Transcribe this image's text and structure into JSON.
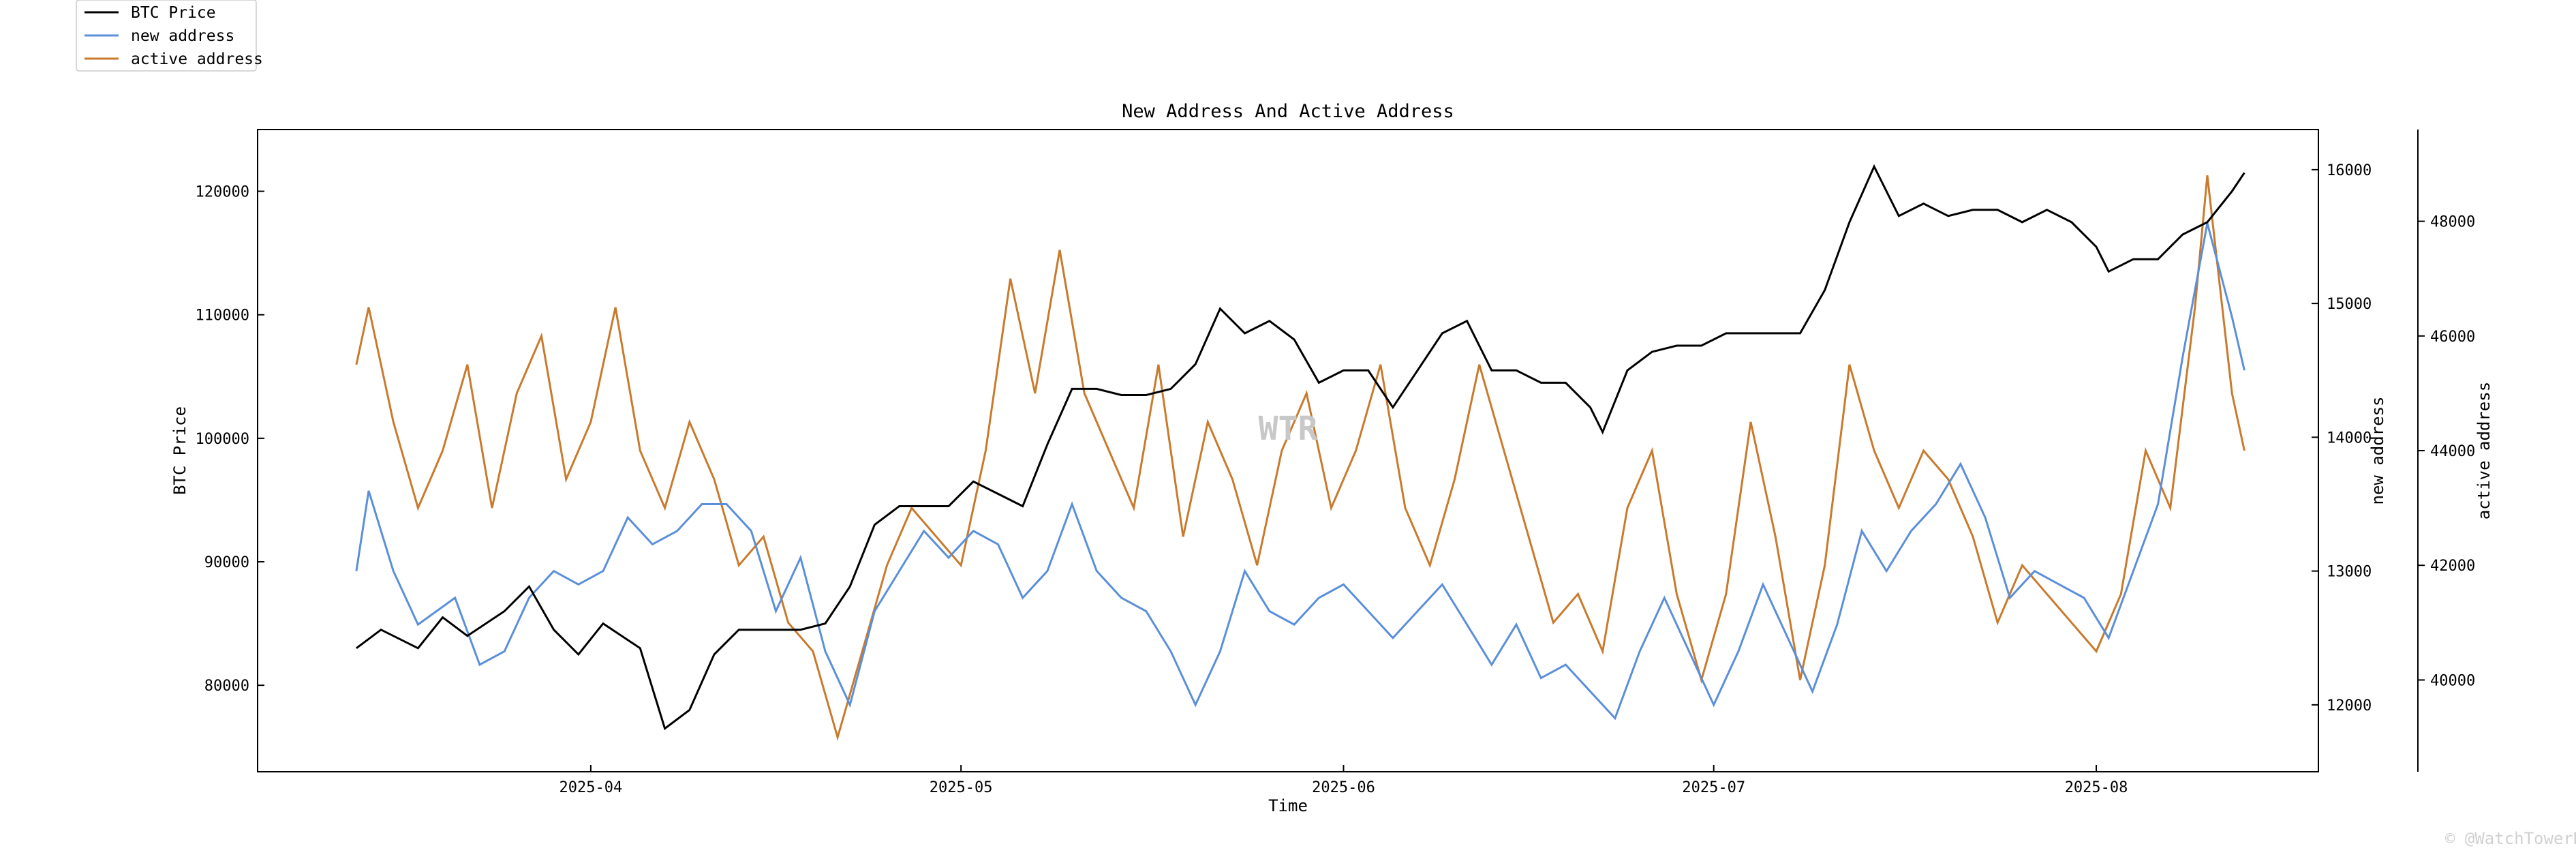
{
  "chart_data": {
    "type": "line",
    "title": "New Address And Active Address",
    "xlabel": "Time",
    "ylabel": "BTC Price",
    "y2label": "new address",
    "y3label": "active address",
    "xlim": [
      "2025-03-05",
      "2025-08-19"
    ],
    "x_ticks": [
      "2025-04",
      "2025-05",
      "2025-06",
      "2025-07",
      "2025-08"
    ],
    "ylim": [
      73000,
      125000
    ],
    "y_ticks": [
      80000,
      90000,
      100000,
      110000,
      120000
    ],
    "y2lim": [
      11500,
      16300
    ],
    "y2_ticks": [
      12000,
      13000,
      14000,
      15000,
      16000
    ],
    "y3lim": [
      38400,
      49600
    ],
    "y3_ticks": [
      40000,
      42000,
      44000,
      46000,
      48000
    ],
    "grid": false,
    "legend": "top-left, outside plot",
    "series": [
      {
        "name": "BTC Price",
        "axis": "left",
        "color": "#000000",
        "points": [
          [
            "2025-03-13",
            83000
          ],
          [
            "2025-03-15",
            84500
          ],
          [
            "2025-03-18",
            83000
          ],
          [
            "2025-03-20",
            85500
          ],
          [
            "2025-03-22",
            84000
          ],
          [
            "2025-03-25",
            86000
          ],
          [
            "2025-03-27",
            88000
          ],
          [
            "2025-03-29",
            84500
          ],
          [
            "2025-03-31",
            82500
          ],
          [
            "2025-04-02",
            85000
          ],
          [
            "2025-04-05",
            83000
          ],
          [
            "2025-04-07",
            76500
          ],
          [
            "2025-04-09",
            78000
          ],
          [
            "2025-04-11",
            82500
          ],
          [
            "2025-04-13",
            84500
          ],
          [
            "2025-04-15",
            84500
          ],
          [
            "2025-04-18",
            84500
          ],
          [
            "2025-04-20",
            85000
          ],
          [
            "2025-04-22",
            88000
          ],
          [
            "2025-04-24",
            93000
          ],
          [
            "2025-04-26",
            94500
          ],
          [
            "2025-04-28",
            94500
          ],
          [
            "2025-04-30",
            94500
          ],
          [
            "2025-05-02",
            96500
          ],
          [
            "2025-05-04",
            95500
          ],
          [
            "2025-05-06",
            94500
          ],
          [
            "2025-05-08",
            99500
          ],
          [
            "2025-05-10",
            104000
          ],
          [
            "2025-05-12",
            104000
          ],
          [
            "2025-05-14",
            103500
          ],
          [
            "2025-05-16",
            103500
          ],
          [
            "2025-05-18",
            104000
          ],
          [
            "2025-05-20",
            106000
          ],
          [
            "2025-05-22",
            110500
          ],
          [
            "2025-05-24",
            108500
          ],
          [
            "2025-05-26",
            109500
          ],
          [
            "2025-05-28",
            108000
          ],
          [
            "2025-05-30",
            104500
          ],
          [
            "2025-06-01",
            105500
          ],
          [
            "2025-06-03",
            105500
          ],
          [
            "2025-06-05",
            102500
          ],
          [
            "2025-06-07",
            105500
          ],
          [
            "2025-06-09",
            108500
          ],
          [
            "2025-06-11",
            109500
          ],
          [
            "2025-06-13",
            105500
          ],
          [
            "2025-06-15",
            105500
          ],
          [
            "2025-06-17",
            104500
          ],
          [
            "2025-06-19",
            104500
          ],
          [
            "2025-06-21",
            102500
          ],
          [
            "2025-06-22",
            100500
          ],
          [
            "2025-06-24",
            105500
          ],
          [
            "2025-06-26",
            107000
          ],
          [
            "2025-06-28",
            107500
          ],
          [
            "2025-06-30",
            107500
          ],
          [
            "2025-07-02",
            108500
          ],
          [
            "2025-07-04",
            108500
          ],
          [
            "2025-07-06",
            108500
          ],
          [
            "2025-07-08",
            108500
          ],
          [
            "2025-07-10",
            112000
          ],
          [
            "2025-07-12",
            117500
          ],
          [
            "2025-07-14",
            122000
          ],
          [
            "2025-07-16",
            118000
          ],
          [
            "2025-07-18",
            119000
          ],
          [
            "2025-07-20",
            118000
          ],
          [
            "2025-07-22",
            118500
          ],
          [
            "2025-07-24",
            118500
          ],
          [
            "2025-07-26",
            117500
          ],
          [
            "2025-07-28",
            118500
          ],
          [
            "2025-07-30",
            117500
          ],
          [
            "2025-08-01",
            115500
          ],
          [
            "2025-08-02",
            113500
          ],
          [
            "2025-08-04",
            114500
          ],
          [
            "2025-08-06",
            114500
          ],
          [
            "2025-08-08",
            116500
          ],
          [
            "2025-08-10",
            117500
          ],
          [
            "2025-08-12",
            120000
          ],
          [
            "2025-08-13",
            121500
          ]
        ]
      },
      {
        "name": "new address",
        "axis": "right",
        "color": "#5b8fd9",
        "points": [
          [
            "2025-03-13",
            13000
          ],
          [
            "2025-03-14",
            13600
          ],
          [
            "2025-03-16",
            13000
          ],
          [
            "2025-03-18",
            12600
          ],
          [
            "2025-03-21",
            12800
          ],
          [
            "2025-03-23",
            12300
          ],
          [
            "2025-03-25",
            12400
          ],
          [
            "2025-03-27",
            12800
          ],
          [
            "2025-03-29",
            13000
          ],
          [
            "2025-03-31",
            12900
          ],
          [
            "2025-04-02",
            13000
          ],
          [
            "2025-04-04",
            13400
          ],
          [
            "2025-04-06",
            13200
          ],
          [
            "2025-04-08",
            13300
          ],
          [
            "2025-04-10",
            13500
          ],
          [
            "2025-04-12",
            13500
          ],
          [
            "2025-04-14",
            13300
          ],
          [
            "2025-04-16",
            12700
          ],
          [
            "2025-04-18",
            13100
          ],
          [
            "2025-04-20",
            12400
          ],
          [
            "2025-04-22",
            12000
          ],
          [
            "2025-04-24",
            12700
          ],
          [
            "2025-04-26",
            13000
          ],
          [
            "2025-04-28",
            13300
          ],
          [
            "2025-04-30",
            13100
          ],
          [
            "2025-05-02",
            13300
          ],
          [
            "2025-05-04",
            13200
          ],
          [
            "2025-05-06",
            12800
          ],
          [
            "2025-05-08",
            13000
          ],
          [
            "2025-05-10",
            13500
          ],
          [
            "2025-05-12",
            13000
          ],
          [
            "2025-05-14",
            12800
          ],
          [
            "2025-05-16",
            12700
          ],
          [
            "2025-05-18",
            12400
          ],
          [
            "2025-05-20",
            12000
          ],
          [
            "2025-05-22",
            12400
          ],
          [
            "2025-05-24",
            13000
          ],
          [
            "2025-05-26",
            12700
          ],
          [
            "2025-05-28",
            12600
          ],
          [
            "2025-05-30",
            12800
          ],
          [
            "2025-06-01",
            12900
          ],
          [
            "2025-06-03",
            12700
          ],
          [
            "2025-06-05",
            12500
          ],
          [
            "2025-06-07",
            12700
          ],
          [
            "2025-06-09",
            12900
          ],
          [
            "2025-06-11",
            12600
          ],
          [
            "2025-06-13",
            12300
          ],
          [
            "2025-06-15",
            12600
          ],
          [
            "2025-06-17",
            12200
          ],
          [
            "2025-06-19",
            12300
          ],
          [
            "2025-06-21",
            12100
          ],
          [
            "2025-06-23",
            11900
          ],
          [
            "2025-06-25",
            12400
          ],
          [
            "2025-06-27",
            12800
          ],
          [
            "2025-06-29",
            12400
          ],
          [
            "2025-07-01",
            12000
          ],
          [
            "2025-07-03",
            12400
          ],
          [
            "2025-07-05",
            12900
          ],
          [
            "2025-07-07",
            12500
          ],
          [
            "2025-07-09",
            12100
          ],
          [
            "2025-07-11",
            12600
          ],
          [
            "2025-07-13",
            13300
          ],
          [
            "2025-07-15",
            13000
          ],
          [
            "2025-07-17",
            13300
          ],
          [
            "2025-07-19",
            13500
          ],
          [
            "2025-07-21",
            13800
          ],
          [
            "2025-07-23",
            13400
          ],
          [
            "2025-07-25",
            12800
          ],
          [
            "2025-07-27",
            13000
          ],
          [
            "2025-07-29",
            12900
          ],
          [
            "2025-07-31",
            12800
          ],
          [
            "2025-08-02",
            12500
          ],
          [
            "2025-08-04",
            13000
          ],
          [
            "2025-08-06",
            13500
          ],
          [
            "2025-08-08",
            14600
          ],
          [
            "2025-08-10",
            15600
          ],
          [
            "2025-08-12",
            14900
          ],
          [
            "2025-08-13",
            14500
          ]
        ]
      },
      {
        "name": "active address",
        "axis": "right-outer",
        "color": "#c97a2c",
        "points": [
          [
            "2025-03-13",
            45500
          ],
          [
            "2025-03-14",
            46500
          ],
          [
            "2025-03-16",
            44500
          ],
          [
            "2025-03-18",
            43000
          ],
          [
            "2025-03-20",
            44000
          ],
          [
            "2025-03-22",
            45500
          ],
          [
            "2025-03-24",
            43000
          ],
          [
            "2025-03-26",
            45000
          ],
          [
            "2025-03-28",
            46000
          ],
          [
            "2025-03-30",
            43500
          ],
          [
            "2025-04-01",
            44500
          ],
          [
            "2025-04-03",
            46500
          ],
          [
            "2025-04-05",
            44000
          ],
          [
            "2025-04-07",
            43000
          ],
          [
            "2025-04-09",
            44500
          ],
          [
            "2025-04-11",
            43500
          ],
          [
            "2025-04-13",
            42000
          ],
          [
            "2025-04-15",
            42500
          ],
          [
            "2025-04-17",
            41000
          ],
          [
            "2025-04-19",
            40500
          ],
          [
            "2025-04-21",
            39000
          ],
          [
            "2025-04-23",
            40500
          ],
          [
            "2025-04-25",
            42000
          ],
          [
            "2025-04-27",
            43000
          ],
          [
            "2025-04-29",
            42500
          ],
          [
            "2025-05-01",
            42000
          ],
          [
            "2025-05-03",
            44000
          ],
          [
            "2025-05-05",
            47000
          ],
          [
            "2025-05-07",
            45000
          ],
          [
            "2025-05-09",
            47500
          ],
          [
            "2025-05-11",
            45000
          ],
          [
            "2025-05-13",
            44000
          ],
          [
            "2025-05-15",
            43000
          ],
          [
            "2025-05-17",
            45500
          ],
          [
            "2025-05-19",
            42500
          ],
          [
            "2025-05-21",
            44500
          ],
          [
            "2025-05-23",
            43500
          ],
          [
            "2025-05-25",
            42000
          ],
          [
            "2025-05-27",
            44000
          ],
          [
            "2025-05-29",
            45000
          ],
          [
            "2025-05-31",
            43000
          ],
          [
            "2025-06-02",
            44000
          ],
          [
            "2025-06-04",
            45500
          ],
          [
            "2025-06-06",
            43000
          ],
          [
            "2025-06-08",
            42000
          ],
          [
            "2025-06-10",
            43500
          ],
          [
            "2025-06-12",
            45500
          ],
          [
            "2025-06-14",
            44000
          ],
          [
            "2025-06-16",
            42500
          ],
          [
            "2025-06-18",
            41000
          ],
          [
            "2025-06-20",
            41500
          ],
          [
            "2025-06-22",
            40500
          ],
          [
            "2025-06-24",
            43000
          ],
          [
            "2025-06-26",
            44000
          ],
          [
            "2025-06-28",
            41500
          ],
          [
            "2025-06-30",
            40000
          ],
          [
            "2025-07-02",
            41500
          ],
          [
            "2025-07-04",
            44500
          ],
          [
            "2025-07-06",
            42500
          ],
          [
            "2025-07-08",
            40000
          ],
          [
            "2025-07-10",
            42000
          ],
          [
            "2025-07-12",
            45500
          ],
          [
            "2025-07-14",
            44000
          ],
          [
            "2025-07-16",
            43000
          ],
          [
            "2025-07-18",
            44000
          ],
          [
            "2025-07-20",
            43500
          ],
          [
            "2025-07-22",
            42500
          ],
          [
            "2025-07-24",
            41000
          ],
          [
            "2025-07-26",
            42000
          ],
          [
            "2025-07-28",
            41500
          ],
          [
            "2025-07-30",
            41000
          ],
          [
            "2025-08-01",
            40500
          ],
          [
            "2025-08-03",
            41500
          ],
          [
            "2025-08-05",
            44000
          ],
          [
            "2025-08-07",
            43000
          ],
          [
            "2025-08-09",
            46500
          ],
          [
            "2025-08-10",
            48800
          ],
          [
            "2025-08-12",
            45000
          ],
          [
            "2025-08-13",
            44000
          ]
        ]
      }
    ]
  },
  "watermark": "WTR",
  "credit": "© @WatchTowerR"
}
